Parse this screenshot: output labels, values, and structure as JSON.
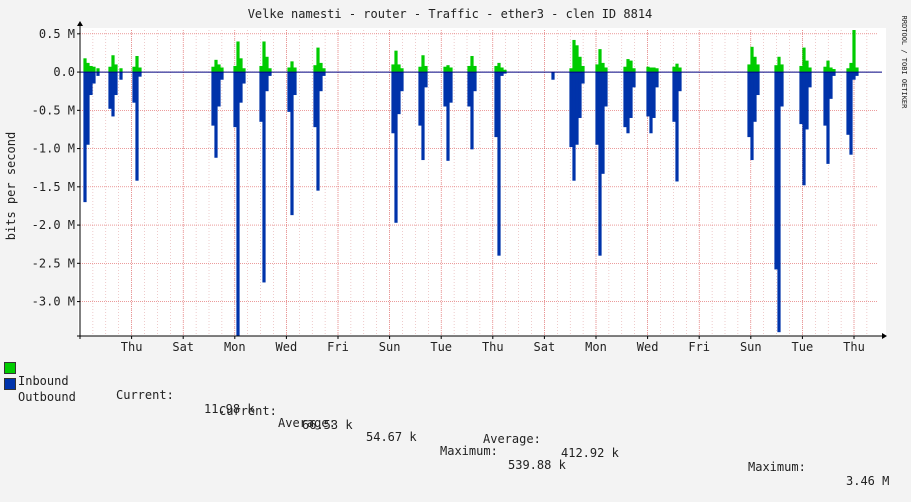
{
  "chart_data": {
    "type": "area",
    "title": "Velke namesti - router - Traffic - ether3 - clen ID 8814",
    "ylabel": "bits per second",
    "watermark": "RRDTOOL / TOBI OETIKER",
    "ylim": [
      -3.45,
      0.55
    ],
    "yticks": [
      0.5,
      0.0,
      -0.5,
      -1.0,
      -1.5,
      -2.0,
      -2.5,
      -3.0
    ],
    "ytick_labels": [
      "0.5 M",
      "0.0",
      "-0.5 M",
      "-1.0 M",
      "-1.5 M",
      "-2.0 M",
      "-2.5 M",
      "-3.0 M"
    ],
    "xlim": [
      0,
      798
    ],
    "day_width": 51.6,
    "xticks": [
      {
        "label": "Thu",
        "pos": 1
      },
      {
        "label": "Sat",
        "pos": 2
      },
      {
        "label": "Mon",
        "pos": 3
      },
      {
        "label": "Wed",
        "pos": 4
      },
      {
        "label": "Fri",
        "pos": 5
      },
      {
        "label": "Sun",
        "pos": 6
      },
      {
        "label": "Tue",
        "pos": 7
      },
      {
        "label": "Thu",
        "pos": 8
      },
      {
        "label": "Sat",
        "pos": 9
      },
      {
        "label": "Mon",
        "pos": 10
      },
      {
        "label": "Wed",
        "pos": 11
      },
      {
        "label": "Fri",
        "pos": 12
      },
      {
        "label": "Sun",
        "pos": 13
      },
      {
        "label": "Tue",
        "pos": 14
      },
      {
        "label": "Thu",
        "pos": 15
      }
    ],
    "grid": true,
    "colors": {
      "inbound": "#00cc00",
      "outbound": "#0033aa",
      "grid": "#dd9999",
      "zero": "#000080"
    },
    "series": [
      {
        "name": "Inbound",
        "color": "#00cc00",
        "values": [
          [
            5,
            0.18
          ],
          [
            8,
            0.12
          ],
          [
            11,
            0.08
          ],
          [
            14,
            0.07
          ],
          [
            18,
            0.05
          ],
          [
            30,
            0.07
          ],
          [
            33,
            0.22
          ],
          [
            36,
            0.1
          ],
          [
            41,
            0.05
          ],
          [
            54,
            0.07
          ],
          [
            57,
            0.21
          ],
          [
            60,
            0.06
          ],
          [
            133,
            0.07
          ],
          [
            136,
            0.16
          ],
          [
            139,
            0.1
          ],
          [
            142,
            0.06
          ],
          [
            155,
            0.08
          ],
          [
            158,
            0.4
          ],
          [
            161,
            0.18
          ],
          [
            164,
            0.05
          ],
          [
            181,
            0.08
          ],
          [
            184,
            0.4
          ],
          [
            187,
            0.2
          ],
          [
            190,
            0.05
          ],
          [
            209,
            0.06
          ],
          [
            212,
            0.14
          ],
          [
            215,
            0.06
          ],
          [
            235,
            0.09
          ],
          [
            238,
            0.32
          ],
          [
            241,
            0.12
          ],
          [
            244,
            0.05
          ],
          [
            313,
            0.1
          ],
          [
            316,
            0.28
          ],
          [
            319,
            0.1
          ],
          [
            322,
            0.05
          ],
          [
            340,
            0.07
          ],
          [
            343,
            0.22
          ],
          [
            346,
            0.08
          ],
          [
            365,
            0.07
          ],
          [
            368,
            0.09
          ],
          [
            371,
            0.06
          ],
          [
            389,
            0.08
          ],
          [
            392,
            0.21
          ],
          [
            395,
            0.08
          ],
          [
            416,
            0.08
          ],
          [
            419,
            0.12
          ],
          [
            422,
            0.06
          ],
          [
            425,
            0.03
          ],
          [
            491,
            0.05
          ],
          [
            494,
            0.42
          ],
          [
            497,
            0.35
          ],
          [
            500,
            0.2
          ],
          [
            503,
            0.08
          ],
          [
            517,
            0.1
          ],
          [
            520,
            0.3
          ],
          [
            523,
            0.12
          ],
          [
            526,
            0.06
          ],
          [
            545,
            0.07
          ],
          [
            548,
            0.17
          ],
          [
            551,
            0.15
          ],
          [
            554,
            0.05
          ],
          [
            568,
            0.07
          ],
          [
            571,
            0.06
          ],
          [
            574,
            0.06
          ],
          [
            577,
            0.05
          ],
          [
            594,
            0.07
          ],
          [
            597,
            0.11
          ],
          [
            600,
            0.06
          ],
          [
            669,
            0.1
          ],
          [
            672,
            0.33
          ],
          [
            675,
            0.2
          ],
          [
            678,
            0.1
          ],
          [
            696,
            0.09
          ],
          [
            699,
            0.2
          ],
          [
            702,
            0.1
          ],
          [
            721,
            0.08
          ],
          [
            724,
            0.32
          ],
          [
            727,
            0.15
          ],
          [
            730,
            0.06
          ],
          [
            745,
            0.07
          ],
          [
            748,
            0.15
          ],
          [
            751,
            0.06
          ],
          [
            754,
            0.04
          ],
          [
            768,
            0.05
          ],
          [
            771,
            0.12
          ],
          [
            774,
            0.55
          ],
          [
            777,
            0.06
          ]
        ]
      },
      {
        "name": "Outbound",
        "color": "#0033aa",
        "values": [
          [
            5,
            -1.7
          ],
          [
            8,
            -0.95
          ],
          [
            11,
            -0.3
          ],
          [
            14,
            -0.15
          ],
          [
            18,
            -0.05
          ],
          [
            30,
            -0.48
          ],
          [
            33,
            -0.58
          ],
          [
            36,
            -0.3
          ],
          [
            41,
            -0.1
          ],
          [
            54,
            -0.4
          ],
          [
            57,
            -1.42
          ],
          [
            60,
            -0.06
          ],
          [
            133,
            -0.7
          ],
          [
            136,
            -1.12
          ],
          [
            139,
            -0.45
          ],
          [
            142,
            -0.1
          ],
          [
            155,
            -0.72
          ],
          [
            158,
            -3.45
          ],
          [
            161,
            -0.4
          ],
          [
            164,
            -0.15
          ],
          [
            181,
            -0.65
          ],
          [
            184,
            -2.75
          ],
          [
            187,
            -0.25
          ],
          [
            190,
            -0.05
          ],
          [
            209,
            -0.52
          ],
          [
            212,
            -1.87
          ],
          [
            215,
            -0.3
          ],
          [
            235,
            -0.72
          ],
          [
            238,
            -1.55
          ],
          [
            241,
            -0.25
          ],
          [
            244,
            -0.05
          ],
          [
            313,
            -0.8
          ],
          [
            316,
            -1.97
          ],
          [
            319,
            -0.55
          ],
          [
            322,
            -0.25
          ],
          [
            340,
            -0.7
          ],
          [
            343,
            -1.15
          ],
          [
            346,
            -0.2
          ],
          [
            365,
            -0.45
          ],
          [
            368,
            -1.16
          ],
          [
            371,
            -0.4
          ],
          [
            389,
            -0.45
          ],
          [
            392,
            -1.01
          ],
          [
            395,
            -0.25
          ],
          [
            416,
            -0.85
          ],
          [
            419,
            -2.4
          ],
          [
            422,
            -0.05
          ],
          [
            425,
            -0.02
          ],
          [
            473,
            -0.1
          ],
          [
            491,
            -0.98
          ],
          [
            494,
            -1.42
          ],
          [
            497,
            -0.95
          ],
          [
            500,
            -0.6
          ],
          [
            503,
            -0.15
          ],
          [
            517,
            -0.95
          ],
          [
            520,
            -2.4
          ],
          [
            523,
            -1.33
          ],
          [
            526,
            -0.45
          ],
          [
            545,
            -0.72
          ],
          [
            548,
            -0.8
          ],
          [
            551,
            -0.6
          ],
          [
            554,
            -0.2
          ],
          [
            568,
            -0.58
          ],
          [
            571,
            -0.8
          ],
          [
            574,
            -0.6
          ],
          [
            577,
            -0.2
          ],
          [
            594,
            -0.65
          ],
          [
            597,
            -1.43
          ],
          [
            600,
            -0.25
          ],
          [
            669,
            -0.85
          ],
          [
            672,
            -1.15
          ],
          [
            675,
            -0.65
          ],
          [
            678,
            -0.3
          ],
          [
            696,
            -2.58
          ],
          [
            699,
            -3.4
          ],
          [
            702,
            -0.45
          ],
          [
            721,
            -0.68
          ],
          [
            724,
            -1.48
          ],
          [
            727,
            -0.75
          ],
          [
            730,
            -0.2
          ],
          [
            745,
            -0.7
          ],
          [
            748,
            -1.2
          ],
          [
            751,
            -0.35
          ],
          [
            754,
            -0.05
          ],
          [
            768,
            -0.82
          ],
          [
            771,
            -1.08
          ],
          [
            774,
            -0.1
          ],
          [
            777,
            -0.05
          ]
        ]
      }
    ]
  },
  "legend": {
    "inbound": {
      "name": "Inbound",
      "current_label": "Current:",
      "current": "11.98 k",
      "average_label": "Average:",
      "average": "54.67 k",
      "maximum_label": "Maximum:",
      "maximum": "539.88 k"
    },
    "outbound": {
      "name": "Outbound",
      "current_label": "Current:",
      "current": "66.53 k",
      "average_label": "Average:",
      "average": "412.92 k",
      "maximum_label": "Maximum:",
      "maximum": "3.46 M"
    }
  }
}
